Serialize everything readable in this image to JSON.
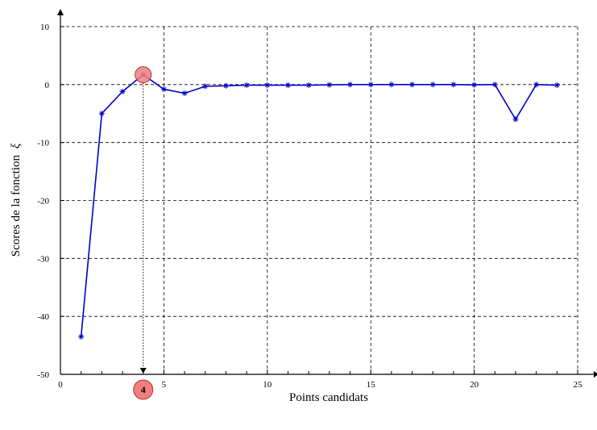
{
  "chart_data": {
    "type": "line",
    "xlabel": "Points candidats",
    "ylabel": "Scores de la fonction",
    "ylabel_symbol": "ξ",
    "xlim": [
      0,
      25
    ],
    "ylim": [
      -50,
      10
    ],
    "x_ticks": [
      0,
      5,
      10,
      15,
      20,
      25
    ],
    "y_ticks": [
      10,
      0,
      -10,
      -20,
      -30,
      -40,
      -50
    ],
    "grid": true,
    "series": [
      {
        "x": [
          1,
          2,
          3,
          4,
          5,
          6,
          7,
          8,
          9,
          10,
          11,
          12,
          13,
          14,
          15,
          16,
          17,
          18,
          19,
          20,
          21,
          22,
          23,
          24
        ],
        "y": [
          -43.5,
          -5,
          -1.2,
          1.7,
          -0.8,
          -1.5,
          -0.3,
          -0.2,
          -0.1,
          -0.1,
          -0.1,
          -0.1,
          -0.05,
          0,
          0,
          0,
          0,
          0,
          0,
          -0.05,
          0,
          -6,
          0,
          -0.1
        ],
        "color": "#0000cc",
        "marker": "asterisk"
      }
    ],
    "annotations": [
      {
        "type": "highlight-point",
        "x": 4,
        "y": 1.7,
        "label": "4",
        "color": "#f08080"
      }
    ]
  }
}
